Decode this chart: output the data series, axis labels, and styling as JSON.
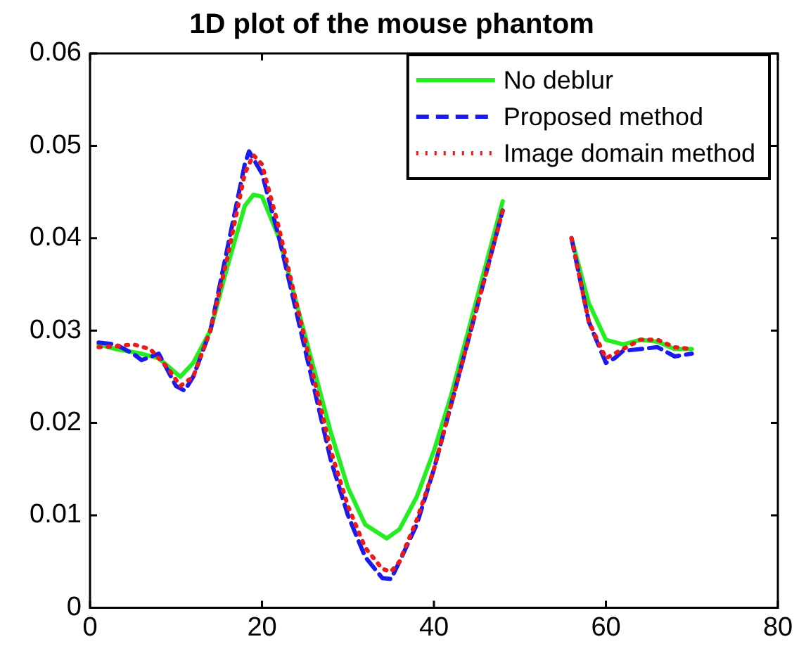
{
  "chart_data": {
    "type": "line",
    "title": "1D plot of the mouse phantom",
    "xlim": [
      0,
      80
    ],
    "xticks": [
      0,
      20,
      40,
      60,
      80
    ],
    "ylim": [
      0,
      0.06
    ],
    "yticks": [
      0,
      0.01,
      0.02,
      0.03,
      0.04,
      0.05,
      0.06
    ],
    "grid": false,
    "legend": "top right",
    "marker": "none",
    "series": [
      {
        "name": "No deblur",
        "color": "#22ee22",
        "line_style": "solid",
        "x": [
          1,
          3,
          6,
          8,
          10.5,
          12,
          14,
          16,
          18,
          19,
          20,
          22,
          24,
          26,
          28,
          30,
          32,
          34.5,
          36,
          38,
          40,
          42,
          44,
          46,
          48,
          52,
          56,
          58,
          60,
          62,
          64,
          66,
          68,
          70
        ],
        "values": [
          0.0285,
          0.028,
          0.0275,
          0.027,
          0.025,
          0.0265,
          0.03,
          0.037,
          0.0435,
          0.0447,
          0.0445,
          0.04,
          0.033,
          0.026,
          0.019,
          0.013,
          0.009,
          0.0075,
          0.0085,
          0.012,
          0.017,
          0.023,
          0.03,
          0.037,
          0.044,
          null,
          0.04,
          0.033,
          0.029,
          0.0285,
          0.029,
          0.0288,
          0.028,
          0.028
        ]
      },
      {
        "name": "Proposed method",
        "color": "#1a1aee",
        "line_style": "dashed",
        "x": [
          1,
          3,
          5,
          6,
          8,
          10,
          11,
          12,
          14,
          16,
          18,
          18.5,
          20,
          22,
          24,
          26,
          28,
          30,
          32,
          34,
          35,
          36,
          38,
          40,
          42,
          44,
          46,
          48,
          52,
          56,
          58,
          60,
          61,
          62,
          64,
          66,
          68,
          70
        ],
        "values": [
          0.0287,
          0.0285,
          0.0275,
          0.0268,
          0.0275,
          0.024,
          0.0235,
          0.025,
          0.03,
          0.039,
          0.048,
          0.0494,
          0.047,
          0.04,
          0.032,
          0.024,
          0.016,
          0.01,
          0.0055,
          0.0032,
          0.0031,
          0.005,
          0.009,
          0.015,
          0.022,
          0.029,
          0.036,
          0.043,
          null,
          0.04,
          0.031,
          0.0265,
          0.027,
          0.0278,
          0.028,
          0.0282,
          0.0272,
          0.0275
        ]
      },
      {
        "name": "Image domain method",
        "color": "#ee1a1a",
        "line_style": "dotted",
        "x": [
          1,
          3,
          5,
          7,
          9,
          10.5,
          12,
          14,
          16,
          18,
          19,
          20,
          22,
          24,
          26,
          28,
          30,
          32,
          34,
          35,
          36,
          38,
          40,
          42,
          44,
          46,
          48,
          52,
          56,
          58,
          60,
          61,
          62,
          64,
          66,
          68,
          70
        ],
        "values": [
          0.0282,
          0.0283,
          0.0285,
          0.028,
          0.026,
          0.024,
          0.025,
          0.03,
          0.038,
          0.047,
          0.049,
          0.048,
          0.041,
          0.033,
          0.025,
          0.017,
          0.011,
          0.0065,
          0.0042,
          0.0039,
          0.005,
          0.0095,
          0.015,
          0.022,
          0.029,
          0.036,
          0.043,
          null,
          0.04,
          0.031,
          0.027,
          0.0275,
          0.028,
          0.029,
          0.029,
          0.0282,
          0.028
        ]
      }
    ]
  }
}
